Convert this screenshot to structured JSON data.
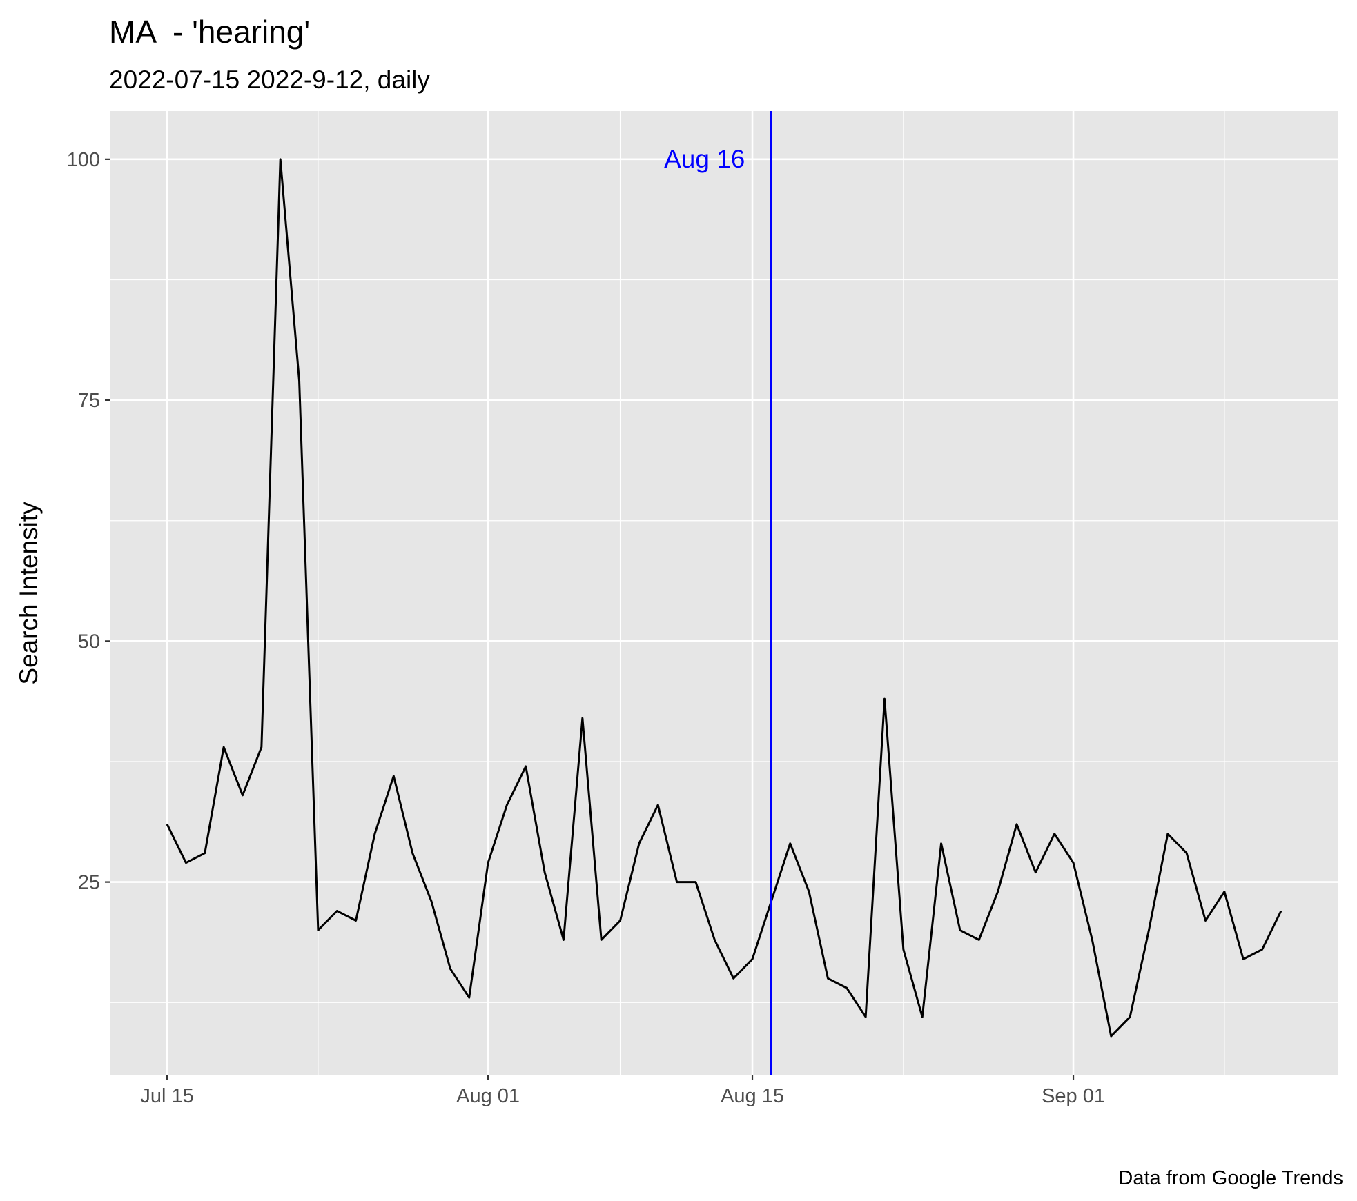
{
  "chart_data": {
    "type": "line",
    "title": "MA  - 'hearing'",
    "subtitle": "2022-07-15 2022-9-12, daily",
    "xlabel": "",
    "ylabel": "Search Intensity",
    "caption": "Data from Google Trends",
    "x_start": "2022-07-15",
    "x_end": "2022-09-12",
    "xlim": [
      "2022-07-12",
      "2022-09-15"
    ],
    "ylim": [
      5,
      105
    ],
    "x_ticks": [
      {
        "date": "2022-07-15",
        "label": "Jul 15"
      },
      {
        "date": "2022-08-01",
        "label": "Aug 01"
      },
      {
        "date": "2022-08-15",
        "label": "Aug 15"
      },
      {
        "date": "2022-09-01",
        "label": "Sep 01"
      }
    ],
    "x_minor_ticks": [
      "2022-07-23",
      "2022-08-08",
      "2022-08-23",
      "2022-09-09"
    ],
    "y_ticks": [
      25,
      50,
      75,
      100
    ],
    "y_minor_ticks": [
      12.5,
      37.5,
      62.5,
      87.5
    ],
    "grid": true,
    "series": [
      {
        "color": "#000000",
        "values": [
          31,
          27,
          28,
          39,
          34,
          39,
          100,
          77,
          20,
          22,
          21,
          30,
          36,
          28,
          23,
          16,
          13,
          27,
          33,
          37,
          26,
          19,
          42,
          19,
          21,
          29,
          33,
          25,
          25,
          19,
          15,
          17,
          23,
          29,
          24,
          15,
          14,
          11,
          44,
          18,
          11,
          29,
          20,
          19,
          24,
          31,
          26,
          30,
          27,
          19,
          9,
          11,
          20,
          30,
          28,
          21,
          24,
          17,
          18,
          22
        ]
      }
    ],
    "vline": {
      "date": "2022-08-16",
      "label": "Aug 16",
      "color": "#0000ff"
    }
  }
}
